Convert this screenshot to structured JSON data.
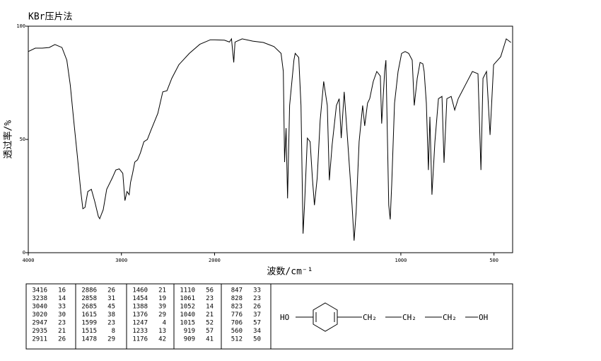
{
  "chart_data": {
    "type": "line",
    "title": "KBr压片法",
    "xlabel": "波数/cm⁻¹",
    "ylabel": "透过率/%",
    "xlim": [
      4000,
      400
    ],
    "xticks": [
      4000,
      3000,
      2000,
      1000,
      500
    ],
    "ylim": [
      0,
      100
    ],
    "yticks": [
      0,
      50,
      100
    ],
    "color": "#000000",
    "x": [
      4000,
      3925,
      3850,
      3775,
      3714,
      3639,
      3586,
      3549,
      3511,
      3474,
      3436,
      3414,
      3391,
      3361,
      3323,
      3286,
      3248,
      3233,
      3195,
      3158,
      3098,
      3060,
      3023,
      2985,
      2962,
      2940,
      2917,
      2902,
      2880,
      2857,
      2827,
      2797,
      2759,
      2722,
      2684,
      2609,
      2556,
      2511,
      2459,
      2383,
      2271,
      2158,
      2045,
      2000,
      1947,
      1920,
      1909,
      1897,
      1890,
      1852,
      1795,
      1738,
      1681,
      1643,
      1631,
      1624,
      1616,
      1608,
      1597,
      1574,
      1567,
      1548,
      1536,
      1525,
      1517,
      1502,
      1487,
      1475,
      1464,
      1449,
      1433,
      1414,
      1395,
      1384,
      1369,
      1346,
      1331,
      1320,
      1304,
      1285,
      1262,
      1251,
      1240,
      1224,
      1205,
      1194,
      1179,
      1167,
      1148,
      1129,
      1110,
      1103,
      1087,
      1080,
      1065,
      1057,
      1049,
      1034,
      1015,
      996,
      977,
      958,
      939,
      928,
      912,
      897,
      882,
      875,
      863,
      852,
      844,
      833,
      817,
      798,
      779,
      768,
      753,
      730,
      711,
      692,
      654,
      616,
      586,
      570,
      559,
      540,
      521,
      502,
      464,
      434,
      409
    ],
    "values": [
      88.8,
      90.3,
      90.3,
      90.6,
      91.9,
      90.6,
      85,
      74,
      58,
      43,
      27,
      19.4,
      20,
      27,
      28,
      22.5,
      16,
      15,
      19,
      28,
      33,
      36.5,
      37,
      35,
      23,
      27,
      25.6,
      31,
      35,
      40,
      41,
      44,
      49,
      50,
      54,
      61.5,
      71,
      71.5,
      77,
      83,
      88,
      92,
      94,
      94,
      93.8,
      93,
      94.4,
      84,
      93,
      94.4,
      93.4,
      92.8,
      91,
      88,
      80,
      40,
      55,
      24,
      65,
      85,
      88,
      86.2,
      65,
      8.4,
      21,
      50.6,
      49,
      33,
      21,
      33,
      58.4,
      75.6,
      65,
      32,
      47.5,
      65,
      68,
      50.6,
      71,
      49,
      21,
      5.3,
      18,
      49,
      65,
      56,
      66,
      68,
      75.6,
      80,
      78,
      57,
      80,
      85,
      21,
      14.7,
      30,
      66,
      80,
      88,
      88.8,
      88,
      85,
      65,
      77,
      84,
      83.4,
      80,
      66,
      36.5,
      60,
      25.6,
      49,
      68,
      69,
      39.7,
      68,
      69,
      63,
      68,
      74,
      80,
      79,
      36.5,
      77,
      80,
      52,
      83,
      86.5,
      94.4,
      92.8
    ]
  },
  "peak_table": {
    "columns": [
      [
        [
          3416,
          16
        ],
        [
          3238,
          14
        ],
        [
          3040,
          33
        ],
        [
          3020,
          30
        ],
        [
          2947,
          23
        ],
        [
          2935,
          21
        ],
        [
          2911,
          26
        ]
      ],
      [
        [
          2886,
          26
        ],
        [
          2858,
          31
        ],
        [
          2685,
          45
        ],
        [
          1615,
          38
        ],
        [
          1599,
          23
        ],
        [
          1515,
          8
        ],
        [
          1478,
          29
        ]
      ],
      [
        [
          1460,
          21
        ],
        [
          1454,
          19
        ],
        [
          1388,
          39
        ],
        [
          1376,
          29
        ],
        [
          1247,
          4
        ],
        [
          1233,
          13
        ],
        [
          1176,
          42
        ]
      ],
      [
        [
          1110,
          56
        ],
        [
          1061,
          23
        ],
        [
          1052,
          14
        ],
        [
          1040,
          21
        ],
        [
          1015,
          52
        ],
        [
          919,
          57
        ],
        [
          909,
          41
        ]
      ],
      [
        [
          847,
          33
        ],
        [
          828,
          23
        ],
        [
          823,
          26
        ],
        [
          776,
          37
        ],
        [
          706,
          57
        ],
        [
          560,
          34
        ],
        [
          512,
          50
        ]
      ]
    ]
  },
  "structure": {
    "left": "HO",
    "groups": [
      "CH₂",
      "CH₂",
      "CH₂"
    ],
    "right": "OH"
  }
}
